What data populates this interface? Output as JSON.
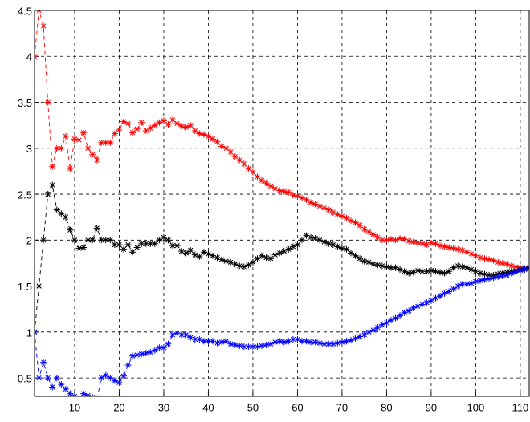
{
  "chart_data": {
    "type": "line",
    "line_style": "dashed",
    "marker": "asterisk",
    "grid": true,
    "xlim": [
      1,
      112
    ],
    "ylim": [
      0.3,
      4.5
    ],
    "xticks": [
      10,
      20,
      30,
      40,
      50,
      60,
      70,
      80,
      90,
      100,
      110
    ],
    "yticks": [
      0.5,
      1,
      1.5,
      2,
      2.5,
      3,
      3.5,
      4,
      4.5
    ],
    "x": [
      1,
      2,
      3,
      4,
      5,
      6,
      7,
      8,
      9,
      10,
      11,
      12,
      13,
      14,
      15,
      16,
      17,
      18,
      19,
      20,
      21,
      22,
      23,
      24,
      25,
      26,
      27,
      28,
      29,
      30,
      31,
      32,
      33,
      34,
      35,
      36,
      37,
      38,
      39,
      40,
      41,
      42,
      43,
      44,
      45,
      46,
      47,
      48,
      49,
      50,
      51,
      52,
      53,
      54,
      55,
      56,
      57,
      58,
      59,
      60,
      61,
      62,
      63,
      64,
      65,
      66,
      67,
      68,
      69,
      70,
      71,
      72,
      73,
      74,
      75,
      76,
      77,
      78,
      79,
      80,
      81,
      82,
      83,
      84,
      85,
      86,
      87,
      88,
      89,
      90,
      91,
      92,
      93,
      94,
      95,
      96,
      97,
      98,
      99,
      100,
      101,
      102,
      103,
      104,
      105,
      106,
      107,
      108,
      109,
      110,
      111,
      112
    ],
    "series": [
      {
        "color": "#ff0000",
        "values": [
          4.0,
          4.5,
          4.33,
          3.5,
          2.8,
          3.0,
          3.0,
          3.13,
          2.78,
          3.1,
          3.09,
          3.17,
          3.0,
          2.93,
          2.87,
          3.06,
          3.06,
          3.06,
          3.16,
          3.2,
          3.29,
          3.27,
          3.17,
          3.21,
          3.28,
          3.19,
          3.22,
          3.25,
          3.28,
          3.3,
          3.26,
          3.31,
          3.27,
          3.24,
          3.23,
          3.25,
          3.19,
          3.16,
          3.15,
          3.13,
          3.1,
          3.07,
          3.02,
          3.0,
          2.96,
          2.91,
          2.87,
          2.83,
          2.78,
          2.74,
          2.69,
          2.65,
          2.62,
          2.59,
          2.56,
          2.54,
          2.53,
          2.52,
          2.49,
          2.48,
          2.46,
          2.44,
          2.41,
          2.39,
          2.37,
          2.35,
          2.33,
          2.3,
          2.28,
          2.26,
          2.24,
          2.21,
          2.19,
          2.16,
          2.12,
          2.09,
          2.06,
          2.03,
          2.0,
          2.0,
          2.01,
          2.0,
          2.02,
          2.01,
          1.99,
          1.98,
          1.97,
          1.96,
          1.95,
          1.97,
          1.96,
          1.94,
          1.93,
          1.92,
          1.91,
          1.9,
          1.89,
          1.87,
          1.85,
          1.83,
          1.81,
          1.8,
          1.79,
          1.78,
          1.76,
          1.75,
          1.74,
          1.72,
          1.71,
          1.7,
          1.69,
          1.69
        ]
      },
      {
        "color": "#000000",
        "values": [
          1.0,
          1.5,
          2.0,
          2.5,
          2.6,
          2.33,
          2.29,
          2.25,
          2.11,
          2.0,
          1.91,
          1.92,
          2.0,
          2.0,
          2.13,
          2.0,
          2.0,
          2.0,
          1.95,
          1.95,
          1.9,
          1.95,
          1.87,
          1.92,
          1.96,
          1.96,
          1.96,
          1.96,
          2.0,
          2.03,
          2.0,
          1.94,
          1.94,
          1.88,
          1.86,
          1.89,
          1.84,
          1.82,
          1.87,
          1.85,
          1.83,
          1.81,
          1.79,
          1.77,
          1.76,
          1.74,
          1.72,
          1.71,
          1.73,
          1.76,
          1.8,
          1.83,
          1.81,
          1.8,
          1.84,
          1.86,
          1.88,
          1.9,
          1.93,
          1.95,
          2.0,
          2.05,
          2.03,
          2.02,
          2.0,
          1.98,
          1.96,
          1.95,
          1.93,
          1.91,
          1.9,
          1.86,
          1.83,
          1.8,
          1.77,
          1.76,
          1.74,
          1.73,
          1.72,
          1.71,
          1.7,
          1.7,
          1.68,
          1.66,
          1.64,
          1.65,
          1.67,
          1.66,
          1.66,
          1.67,
          1.66,
          1.65,
          1.64,
          1.66,
          1.7,
          1.72,
          1.71,
          1.7,
          1.68,
          1.66,
          1.64,
          1.63,
          1.62,
          1.62,
          1.63,
          1.64,
          1.65,
          1.66,
          1.67,
          1.68,
          1.69,
          1.7
        ]
      },
      {
        "color": "#0000ff",
        "values": [
          1.0,
          0.5,
          0.67,
          0.5,
          0.4,
          0.5,
          0.43,
          0.38,
          0.33,
          0.3,
          0.27,
          0.33,
          0.31,
          0.29,
          0.27,
          0.5,
          0.53,
          0.5,
          0.47,
          0.45,
          0.52,
          0.64,
          0.74,
          0.75,
          0.76,
          0.77,
          0.78,
          0.8,
          0.83,
          0.83,
          0.87,
          0.97,
          0.99,
          0.97,
          0.97,
          0.94,
          0.92,
          0.92,
          0.9,
          0.9,
          0.9,
          0.88,
          0.89,
          0.9,
          0.87,
          0.86,
          0.85,
          0.84,
          0.84,
          0.84,
          0.84,
          0.85,
          0.86,
          0.87,
          0.89,
          0.9,
          0.89,
          0.9,
          0.92,
          0.92,
          0.9,
          0.9,
          0.89,
          0.89,
          0.88,
          0.87,
          0.87,
          0.87,
          0.88,
          0.89,
          0.9,
          0.91,
          0.93,
          0.95,
          0.97,
          1.0,
          1.02,
          1.05,
          1.08,
          1.1,
          1.13,
          1.15,
          1.18,
          1.21,
          1.23,
          1.26,
          1.28,
          1.3,
          1.32,
          1.34,
          1.37,
          1.39,
          1.42,
          1.44,
          1.47,
          1.5,
          1.52,
          1.52,
          1.53,
          1.55,
          1.56,
          1.57,
          1.58,
          1.59,
          1.6,
          1.61,
          1.62,
          1.64,
          1.65,
          1.67,
          1.68,
          1.7
        ]
      }
    ]
  }
}
